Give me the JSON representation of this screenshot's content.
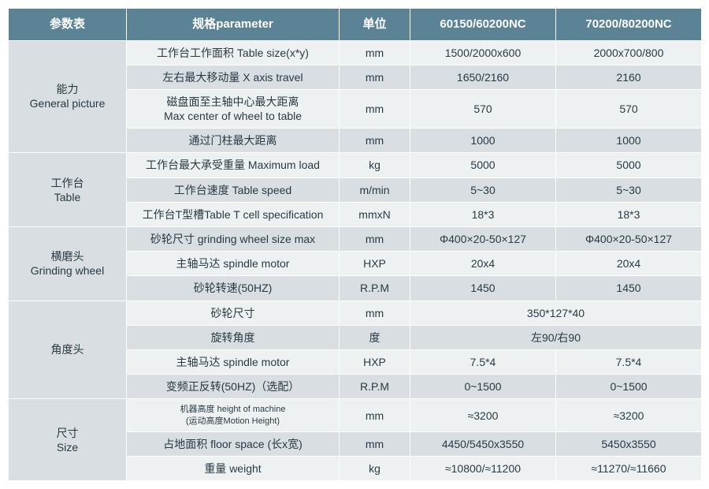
{
  "colors": {
    "header_bg": "#5b8395",
    "header_fg": "#ffffff",
    "band_dark": "#d8dee1",
    "band_light": "#eef1f2",
    "text": "#2a3a42",
    "border": "#ffffff"
  },
  "headers": {
    "c1": "参数表",
    "c2": "规格parameter",
    "c3": "单位",
    "c4": "60150/60200NC",
    "c5": "70200/80200NC"
  },
  "groups": [
    {
      "label": "能力\nGeneral picture",
      "rows": [
        {
          "p": "工作台工作面积 Table size(x*y)",
          "u": "mm",
          "v1": "1500/2000x600",
          "v2": "2000x700/800"
        },
        {
          "p": "左右最大移动量 X axis travel",
          "u": "mm",
          "v1": "1650/2160",
          "v2": "2160"
        },
        {
          "p": "磁盘面至主轴中心最大距离\nMax center of wheel to table",
          "u": "mm",
          "v1": "570",
          "v2": "570"
        },
        {
          "p": "通过门柱最大距离",
          "u": "mm",
          "v1": "1000",
          "v2": "1000"
        }
      ]
    },
    {
      "label": "工作台\nTable",
      "rows": [
        {
          "p": "工作台最大承受重量 Maximum load",
          "u": "kg",
          "v1": "5000",
          "v2": "5000"
        },
        {
          "p": "工作台速度 Table speed",
          "u": "m/min",
          "v1": "5~30",
          "v2": "5~30"
        },
        {
          "p": "工作台T型槽Table T cell specification",
          "u": "mmxN",
          "v1": "18*3",
          "v2": "18*3"
        }
      ]
    },
    {
      "label": "横磨头\nGrinding wheel",
      "rows": [
        {
          "p": "砂轮尺寸 grinding wheel size max",
          "u": "mm",
          "v1": "Φ400×20-50×127",
          "v2": "Φ400×20-50×127"
        },
        {
          "p": "主轴马达 spindle motor",
          "u": "HXP",
          "v1": "20x4",
          "v2": "20x4"
        },
        {
          "p": "砂轮转速(50HZ)",
          "u": "R.P.M",
          "v1": "1450",
          "v2": "1450"
        }
      ]
    },
    {
      "label": "角度头",
      "rows": [
        {
          "p": "砂轮尺寸",
          "u": "mm",
          "merged": "350*127*40"
        },
        {
          "p": "旋转角度",
          "u": "度",
          "merged": "左90/右90"
        },
        {
          "p": "主轴马达 spindle motor",
          "u": "HXP",
          "v1": "7.5*4",
          "v2": "7.5*4"
        },
        {
          "p": "变频正反转(50HZ)（选配）",
          "u": "R.P.M",
          "v1": "0~1500",
          "v2": "0~1500"
        }
      ]
    },
    {
      "label": "尺寸\nSize",
      "rows": [
        {
          "p": "机器高度 height of machine\n(运动高度Motion Height)",
          "u": "mm",
          "v1": "≈3200",
          "v2": "≈3200",
          "small": true
        },
        {
          "p": "占地面积 floor space (长x宽)",
          "u": "mm",
          "v1": "4450/5450x3550",
          "v2": "5450x3550"
        },
        {
          "p": "重量 weight",
          "u": "kg",
          "v1": "≈10800/≈11200",
          "v2": "≈11270/≈11660"
        }
      ]
    }
  ]
}
